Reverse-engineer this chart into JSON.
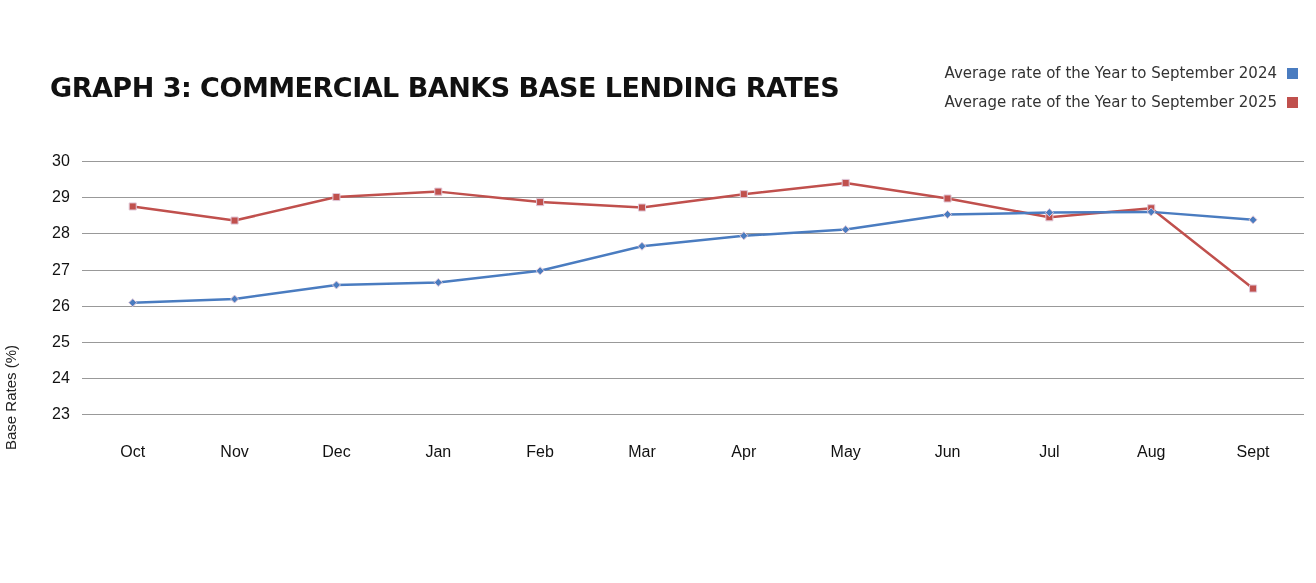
{
  "chart_data": {
    "type": "line",
    "title": "GRAPH 3: COMMERCIAL BANKS BASE LENDING RATES",
    "ylabel": "Base Rates (%)",
    "categories": [
      "Oct",
      "Nov",
      "Dec",
      "Jan",
      "Feb",
      "Mar",
      "Apr",
      "May",
      "Jun",
      "Jul",
      "Aug",
      "Sept"
    ],
    "series": [
      {
        "name": "Average rate of the Year to September 2024",
        "color": "#4a7cc0",
        "marker": "diamond",
        "values": [
          26.1,
          26.2,
          26.59,
          26.66,
          26.98,
          27.66,
          27.95,
          28.12,
          28.54,
          28.59,
          28.61,
          28.39
        ]
      },
      {
        "name": "Average rate of the Year to September 2025",
        "color": "#c0504d",
        "marker": "square",
        "values": [
          28.76,
          28.37,
          29.02,
          29.17,
          28.88,
          28.73,
          29.1,
          29.41,
          28.98,
          28.46,
          28.71,
          26.49
        ]
      }
    ],
    "ylim": [
      23,
      30
    ],
    "yticks": [
      23,
      24,
      25,
      26,
      27,
      28,
      29,
      30
    ],
    "grid": "y",
    "legend": "top right",
    "line_style": "solid"
  }
}
